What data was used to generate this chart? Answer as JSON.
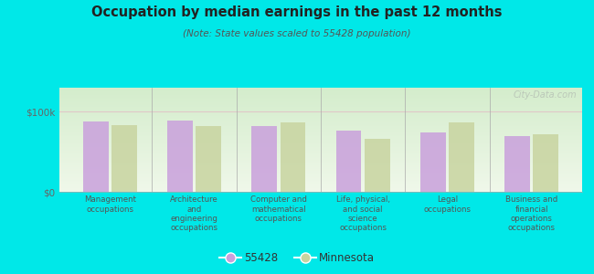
{
  "title": "Occupation by median earnings in the past 12 months",
  "subtitle": "(Note: State values scaled to 55428 population)",
  "categories": [
    "Management\noccupations",
    "Architecture\nand\nengineering\noccupations",
    "Computer and\nmathematical\noccupations",
    "Life, physical,\nand social\nscience\noccupations",
    "Legal\noccupations",
    "Business and\nfinancial\noperations\noccupations"
  ],
  "values_55428": [
    88000,
    89000,
    82000,
    76000,
    74000,
    70000
  ],
  "values_mn": [
    83000,
    82000,
    87000,
    66000,
    87000,
    72000
  ],
  "color_55428": "#c9a0dc",
  "color_mn": "#c8d4a0",
  "ylim": [
    0,
    130000
  ],
  "yticks": [
    0,
    100000
  ],
  "ytick_labels": [
    "$0",
    "$100k"
  ],
  "bg_top_color": "#d4edcc",
  "bg_bottom_color": "#f0f8ea",
  "figure_bg": "#00e8e8",
  "legend_label_55428": "55428",
  "legend_label_mn": "Minnesota",
  "watermark": "City-Data.com"
}
